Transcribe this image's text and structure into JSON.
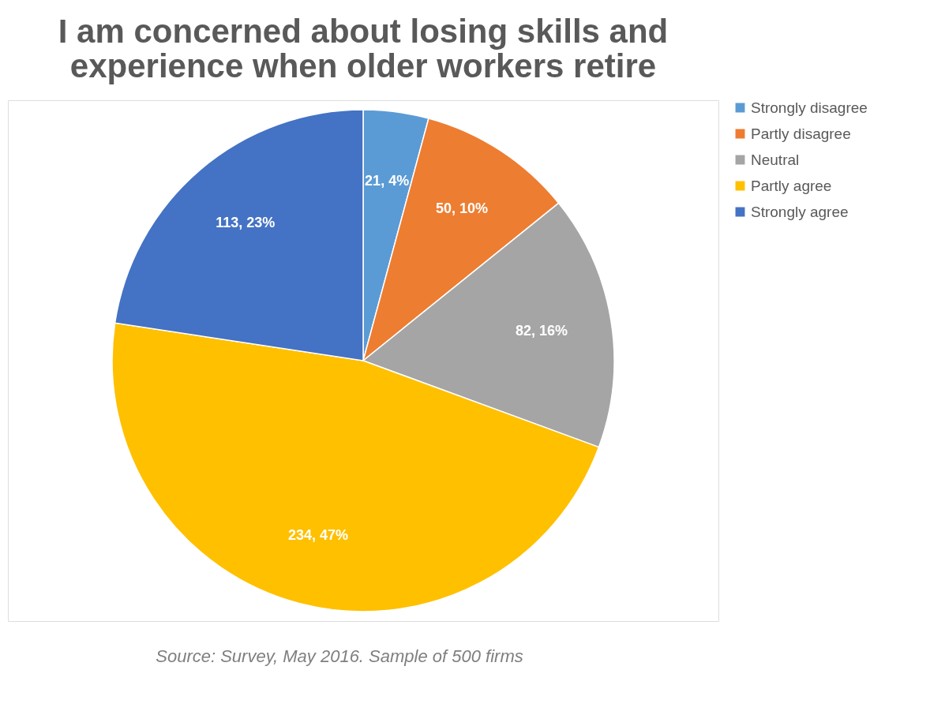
{
  "chart_data": {
    "type": "pie",
    "title": "I am concerned about losing skills and experience when older workers retire",
    "categories": [
      "Strongly disagree",
      "Partly disagree",
      "Neutral",
      "Partly agree",
      "Strongly agree"
    ],
    "values": [
      21,
      50,
      82,
      234,
      113
    ],
    "value_labels": [
      "21, 4%",
      "50, 10%",
      "82, 16%",
      "234, 47%",
      "113, 23%"
    ],
    "colors": [
      "#5b9bd5",
      "#ed7d31",
      "#a5a5a5",
      "#ffc000",
      "#4472c4"
    ],
    "legend": "right",
    "annotations": [
      "Source: Survey, May 2016. Sample of 500 firms"
    ]
  }
}
